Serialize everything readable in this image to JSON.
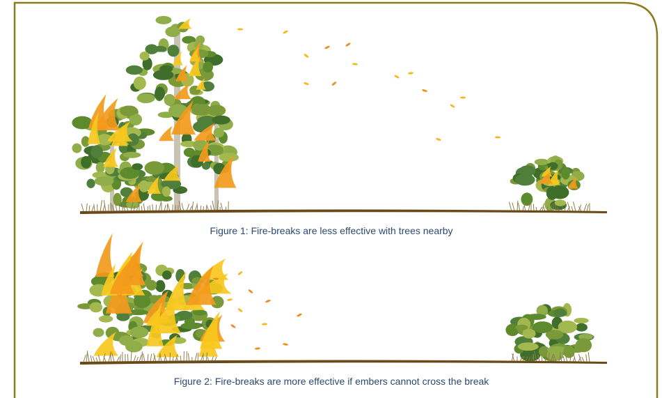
{
  "figures": [
    {
      "caption": "Figure 1: Fire-breaks are less effective with trees nearby"
    },
    {
      "caption": "Figure 2: Fire-breaks are more effective if embers cannot cross the break"
    }
  ]
}
